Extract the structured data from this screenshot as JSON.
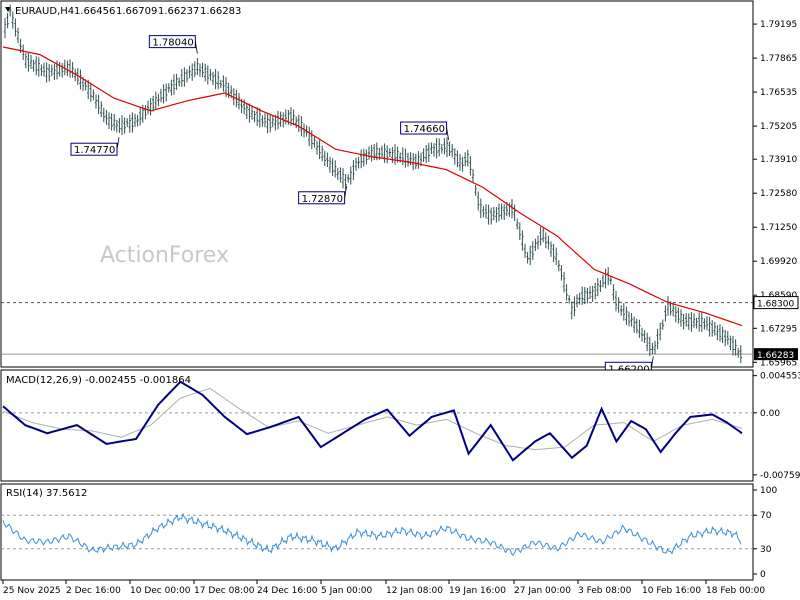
{
  "header": {
    "symbol": "EURAUD,H4",
    "open": "1.66456",
    "high": "1.66709",
    "low": "1.66237",
    "close": "1.66283"
  },
  "watermark": "ActionForex",
  "colors": {
    "candle": "#2f4f4f",
    "ma": "#e00000",
    "macd": "#000080",
    "signal": "#b0b0b0",
    "rsi": "#3a8ed8",
    "grid": "#999999",
    "last_price_bg": "#000000"
  },
  "chart_data": [
    {
      "type": "line",
      "panel": "price",
      "yticks": [
        "1.79195",
        "1.77865",
        "1.76535",
        "1.75205",
        "1.73910",
        "1.72580",
        "1.71250",
        "1.69920",
        "1.68590",
        "1.67295",
        "1.65965"
      ],
      "ylim": [
        1.6582,
        1.8002
      ],
      "xticks": [
        "25 Nov 2025",
        "2 Dec 16:00",
        "10 Dec 00:00",
        "17 Dec 08:00",
        "24 Dec 16:00",
        "5 Jan 00:00",
        "12 Jan 08:00",
        "19 Jan 16:00",
        "27 Jan 00:00",
        "3 Feb 08:00",
        "10 Feb 16:00",
        "18 Feb 00:00"
      ],
      "level_line": {
        "value": 1.683,
        "label": "1.68300"
      },
      "last_price": {
        "value": 1.66283,
        "label": "1.66283"
      },
      "annotations": [
        {
          "label": "1.78040",
          "value": 1.7804,
          "x": 0.263
        },
        {
          "label": "1.74770",
          "value": 1.7477,
          "x": 0.157
        },
        {
          "label": "1.72870",
          "value": 1.7287,
          "x": 0.465
        },
        {
          "label": "1.74660",
          "value": 1.7466,
          "x": 0.603
        },
        {
          "label": "1.66200",
          "value": 1.662,
          "x": 0.88
        }
      ],
      "series": [
        {
          "name": "price",
          "x": [
            0,
            0.01,
            0.03,
            0.06,
            0.09,
            0.12,
            0.14,
            0.157,
            0.18,
            0.2,
            0.23,
            0.263,
            0.3,
            0.33,
            0.36,
            0.39,
            0.41,
            0.44,
            0.465,
            0.48,
            0.5,
            0.53,
            0.56,
            0.58,
            0.603,
            0.62,
            0.63,
            0.645,
            0.66,
            0.69,
            0.71,
            0.73,
            0.75,
            0.77,
            0.78,
            0.8,
            0.82,
            0.83,
            0.84,
            0.86,
            0.88,
            0.89,
            0.9,
            0.92,
            0.95,
            0.98,
            1.0
          ],
          "values": [
            1.788,
            1.797,
            1.778,
            1.773,
            1.775,
            1.765,
            1.755,
            1.752,
            1.754,
            1.76,
            1.768,
            1.775,
            1.768,
            1.758,
            1.753,
            1.756,
            1.75,
            1.738,
            1.73,
            1.738,
            1.742,
            1.741,
            1.738,
            1.743,
            1.744,
            1.737,
            1.74,
            1.72,
            1.717,
            1.72,
            1.7,
            1.71,
            1.7,
            1.68,
            1.685,
            1.687,
            1.694,
            1.683,
            1.679,
            1.673,
            1.664,
            1.672,
            1.682,
            1.676,
            1.675,
            1.669,
            1.662
          ]
        },
        {
          "name": "ma",
          "x": [
            0,
            0.05,
            0.1,
            0.15,
            0.2,
            0.25,
            0.3,
            0.35,
            0.4,
            0.45,
            0.5,
            0.55,
            0.6,
            0.65,
            0.7,
            0.75,
            0.8,
            0.85,
            0.9,
            0.95,
            1.0
          ],
          "values": [
            1.783,
            1.78,
            1.772,
            1.763,
            1.758,
            1.762,
            1.765,
            1.758,
            1.752,
            1.743,
            1.74,
            1.738,
            1.735,
            1.728,
            1.718,
            1.709,
            1.696,
            1.69,
            1.683,
            1.679,
            1.674
          ]
        }
      ]
    },
    {
      "type": "line",
      "panel": "macd",
      "label": "MACD(12,26,9) -0.002455 -0.001864",
      "yticks": [
        "0.004553",
        "0.00",
        "-0.007593"
      ],
      "ylim": [
        -0.0081,
        0.005
      ],
      "zero_line": 0.0,
      "series": [
        {
          "name": "macd",
          "x": [
            0,
            0.03,
            0.06,
            0.1,
            0.14,
            0.18,
            0.21,
            0.24,
            0.27,
            0.3,
            0.33,
            0.36,
            0.4,
            0.43,
            0.46,
            0.49,
            0.52,
            0.55,
            0.58,
            0.61,
            0.63,
            0.66,
            0.69,
            0.72,
            0.74,
            0.77,
            0.79,
            0.81,
            0.83,
            0.85,
            0.87,
            0.89,
            0.91,
            0.93,
            0.96,
            0.98,
            1.0
          ],
          "values": [
            0.0008,
            -0.0015,
            -0.0025,
            -0.0015,
            -0.0038,
            -0.0032,
            0.001,
            0.0038,
            0.0022,
            -0.0005,
            -0.0026,
            -0.0018,
            -0.0005,
            -0.0042,
            -0.0025,
            -0.0008,
            0.0004,
            -0.0028,
            -0.0005,
            0.0003,
            -0.005,
            -0.0015,
            -0.0058,
            -0.0035,
            -0.0025,
            -0.0055,
            -0.004,
            0.0005,
            -0.0035,
            -0.001,
            -0.002,
            -0.0048,
            -0.0025,
            -0.0005,
            -0.0002,
            -0.0012,
            -0.0025
          ]
        },
        {
          "name": "signal",
          "x": [
            0,
            0.04,
            0.08,
            0.12,
            0.16,
            0.2,
            0.24,
            0.28,
            0.32,
            0.36,
            0.4,
            0.44,
            0.48,
            0.52,
            0.56,
            0.6,
            0.64,
            0.68,
            0.72,
            0.76,
            0.8,
            0.84,
            0.88,
            0.92,
            0.96,
            1.0
          ],
          "values": [
            0.0002,
            -0.0012,
            -0.002,
            -0.0022,
            -0.003,
            -0.0015,
            0.0018,
            0.003,
            0.0005,
            -0.0018,
            -0.001,
            -0.0025,
            -0.0015,
            -0.0005,
            -0.0015,
            -0.0008,
            -0.0025,
            -0.004,
            -0.0045,
            -0.0042,
            -0.0015,
            -0.0012,
            -0.0035,
            -0.0015,
            -0.0008,
            -0.0019
          ]
        }
      ]
    },
    {
      "type": "line",
      "panel": "rsi",
      "label": "RSI(14) 37.5612",
      "yticks": [
        "100",
        "70",
        "30",
        "0"
      ],
      "ylim": [
        0,
        100
      ],
      "levels": [
        70,
        30
      ],
      "series": [
        {
          "name": "rsi",
          "x": [
            0,
            0.03,
            0.06,
            0.09,
            0.12,
            0.15,
            0.18,
            0.21,
            0.24,
            0.27,
            0.3,
            0.33,
            0.36,
            0.39,
            0.42,
            0.45,
            0.48,
            0.51,
            0.54,
            0.57,
            0.6,
            0.63,
            0.66,
            0.69,
            0.72,
            0.75,
            0.78,
            0.81,
            0.84,
            0.87,
            0.9,
            0.93,
            0.96,
            0.99,
            1.0
          ],
          "values": [
            62,
            40,
            38,
            45,
            28,
            32,
            35,
            55,
            68,
            60,
            52,
            40,
            28,
            45,
            40,
            30,
            50,
            45,
            52,
            45,
            55,
            42,
            38,
            25,
            38,
            30,
            48,
            38,
            55,
            40,
            25,
            45,
            52,
            48,
            37.6
          ]
        }
      ]
    }
  ]
}
